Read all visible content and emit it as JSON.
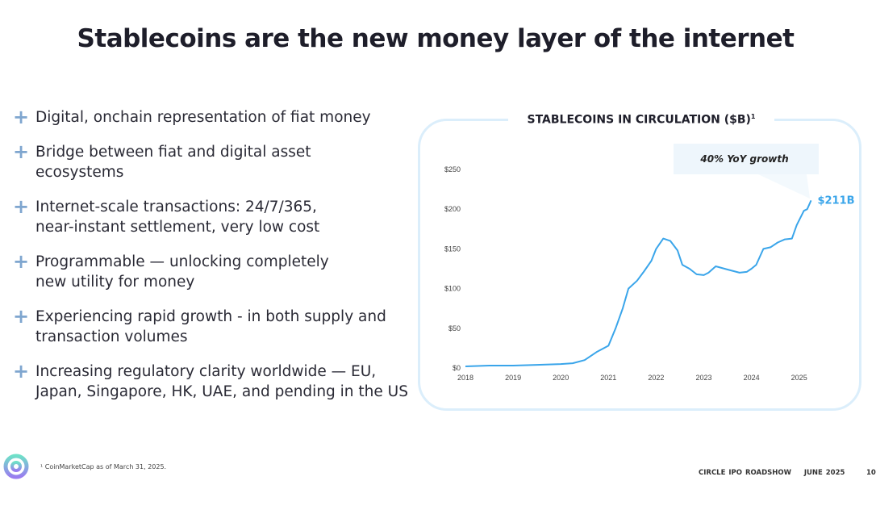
{
  "title": "Stablecoins are the new money layer of the internet",
  "bullets": [
    [
      "Digital, onchain representation of fiat money"
    ],
    [
      "Bridge between fiat and digital asset",
      "ecosystems"
    ],
    [
      "Internet-scale transactions: 24/7/365,",
      "near-instant settlement, very low cost"
    ],
    [
      "Programmable — unlocking completely",
      "new utility for money"
    ],
    [
      "Experiencing rapid growth - in both supply and",
      "transaction volumes"
    ],
    [
      "Increasing regulatory clarity worldwide — EU,",
      "Japan, Singapore, HK, UAE, and pending in the US"
    ]
  ],
  "footnote": "¹ CoinMarketCap as of March 31, 2025.",
  "footer": {
    "event": "CIRCLE IPO ROADSHOW",
    "date": "JUNE  2025",
    "page": "10"
  },
  "colors": {
    "line": "#3aa5ea",
    "border": "#dbeefb",
    "bullet": "#7fa6cf"
  },
  "chart_data": {
    "type": "line",
    "title": "STABLECOINS IN CIRCULATION ($B)",
    "title_footnote": "1",
    "annotation": "40% YoY growth",
    "end_label": "$211B",
    "xticks": [
      "2018",
      "2019",
      "2020",
      "2021",
      "2022",
      "2023",
      "2024",
      "2025"
    ],
    "yticks": [
      "$0",
      "$50",
      "$100",
      "$150",
      "$200",
      "$250"
    ],
    "xlim": [
      2018,
      2025.5
    ],
    "ylim": [
      0,
      250
    ],
    "grid": false,
    "x": [
      2018.0,
      2018.5,
      2019.0,
      2019.5,
      2020.0,
      2020.25,
      2020.5,
      2020.75,
      2021.0,
      2021.15,
      2021.3,
      2021.42,
      2021.6,
      2021.75,
      2021.9,
      2022.0,
      2022.15,
      2022.3,
      2022.45,
      2022.55,
      2022.7,
      2022.85,
      2023.0,
      2023.1,
      2023.25,
      2023.5,
      2023.75,
      2023.9,
      2024.0,
      2024.1,
      2024.25,
      2024.4,
      2024.55,
      2024.7,
      2024.85,
      2024.95,
      2025.1,
      2025.17,
      2025.25
    ],
    "y": [
      2,
      3,
      3,
      4,
      5,
      6,
      10,
      20,
      28,
      50,
      75,
      100,
      110,
      122,
      135,
      150,
      163,
      160,
      148,
      130,
      125,
      118,
      117,
      120,
      128,
      124,
      120,
      121,
      125,
      130,
      150,
      152,
      158,
      162,
      163,
      180,
      198,
      200,
      211
    ]
  }
}
